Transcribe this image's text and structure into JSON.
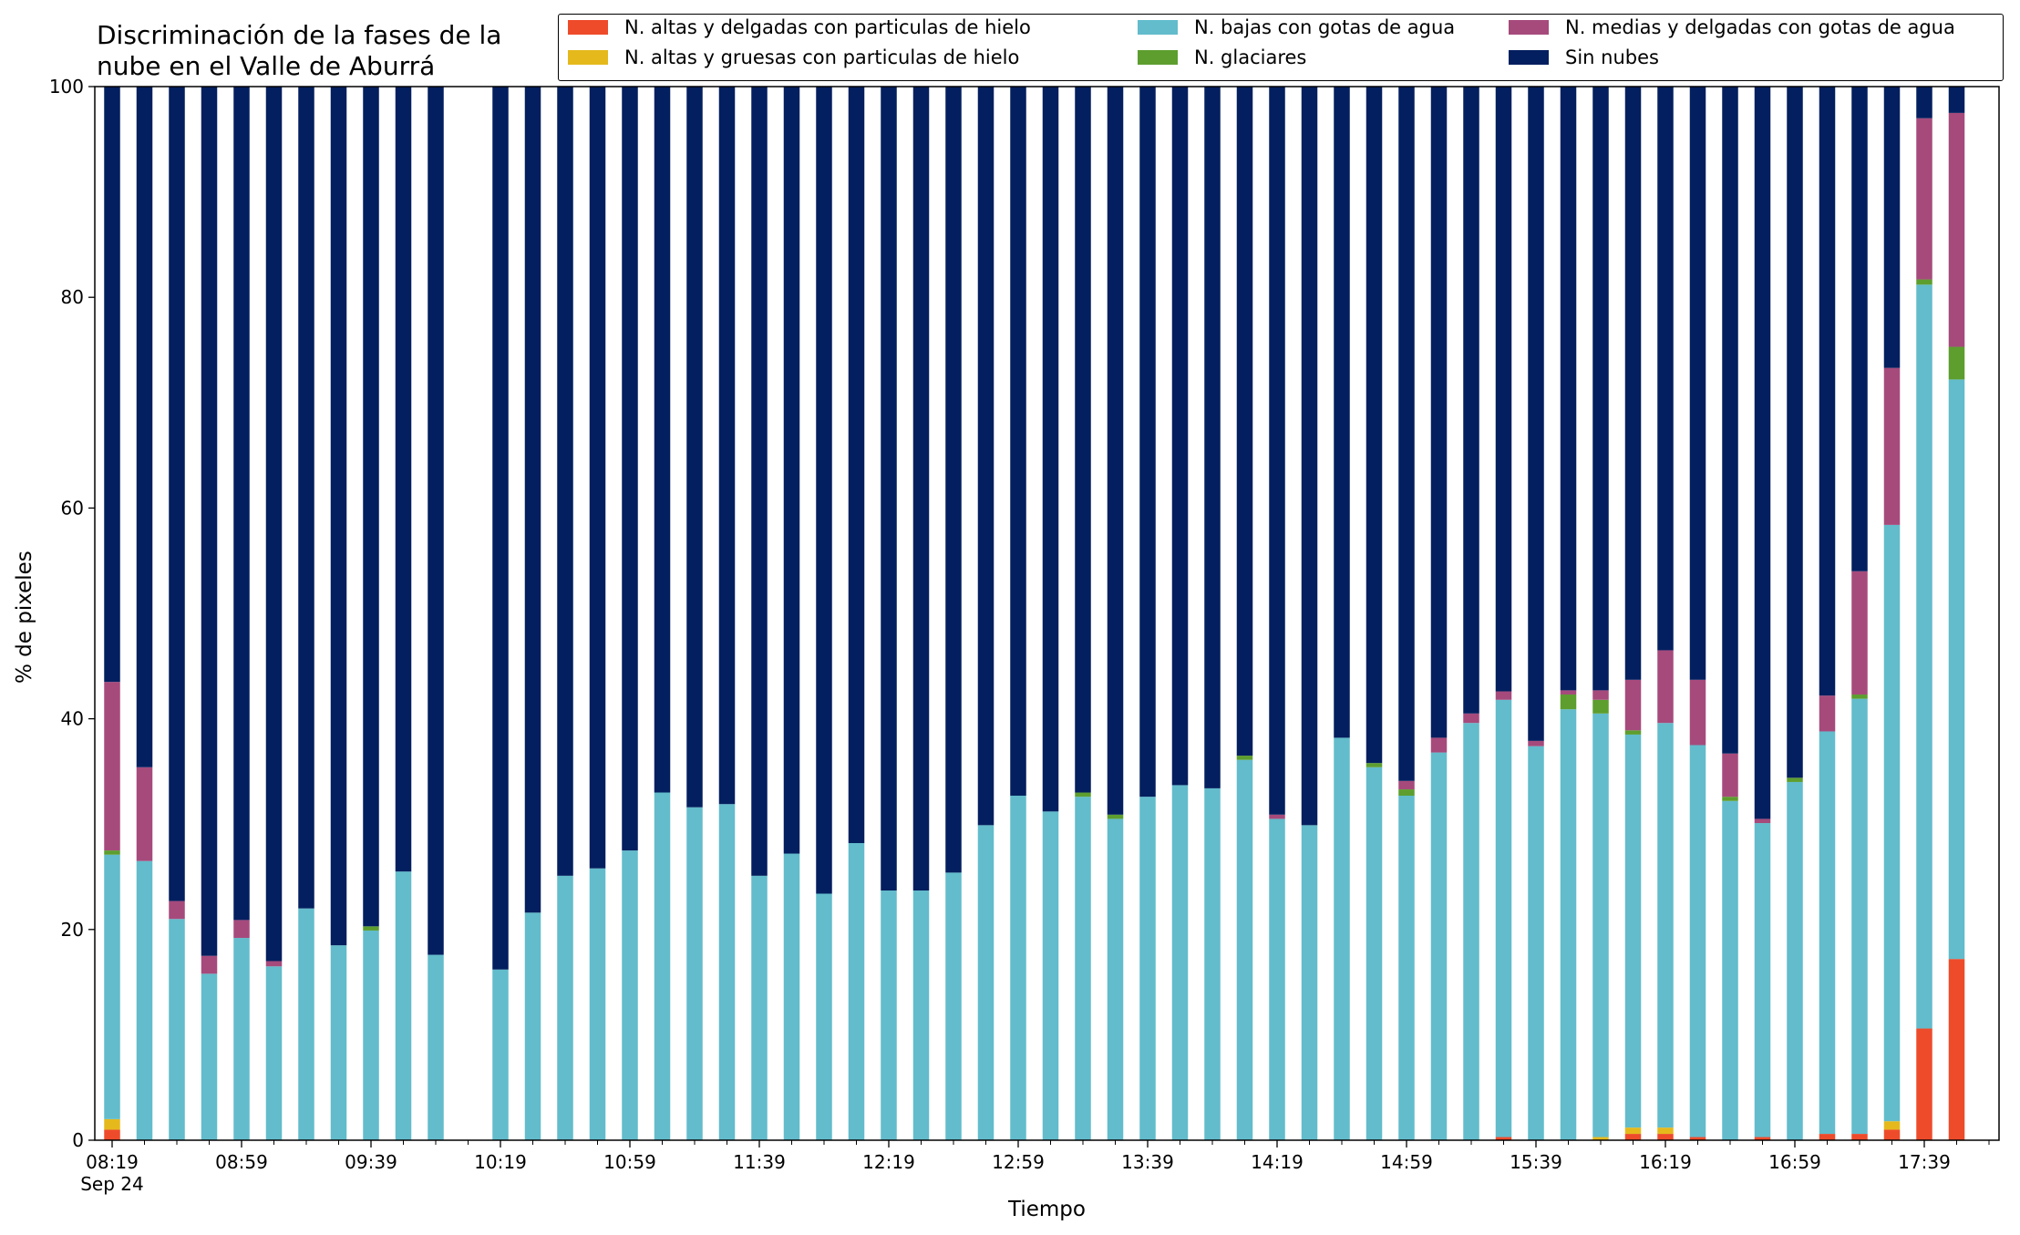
{
  "chart_data": {
    "type": "bar",
    "stacked": true,
    "title": "Discriminación de la fases de la\nnube en el Valle de Aburrá",
    "xlabel": "Tiempo",
    "ylabel": "% de pixeles",
    "ylim": [
      0,
      100
    ],
    "yticks": [
      0,
      20,
      40,
      60,
      80,
      100
    ],
    "xtick_labels": [
      "08:19\nSep 24",
      "08:59",
      "09:39",
      "10:19",
      "10:59",
      "11:39",
      "12:19",
      "12:59",
      "13:39",
      "14:19",
      "14:59",
      "15:39",
      "16:19",
      "16:59",
      "17:39"
    ],
    "legend_placement": "top",
    "legend_columns": 3,
    "series": [
      {
        "name": "N. altas y delgadas con particulas de hielo",
        "color": "#ee4b2b"
      },
      {
        "name": "N. altas y gruesas con particulas de hielo",
        "color": "#e5b91c"
      },
      {
        "name": "N. bajas con gotas de agua",
        "color": "#62bccb"
      },
      {
        "name": "N. glaciares",
        "color": "#5d9e2f"
      },
      {
        "name": "N. medias y delgadas con gotas de agua",
        "color": "#a64a7c"
      },
      {
        "name": "Sin nubes",
        "color": "#031f5f"
      }
    ],
    "bars": [
      [
        1.0,
        1.0,
        25.1,
        0.4,
        16.0,
        56.5
      ],
      [
        0,
        0,
        26.5,
        0,
        8.9,
        64.6
      ],
      [
        0,
        0,
        21.0,
        0,
        1.7,
        77.3
      ],
      [
        0,
        0,
        15.8,
        0,
        1.7,
        82.5
      ],
      [
        0,
        0,
        19.2,
        0,
        1.7,
        79.1
      ],
      [
        0,
        0,
        16.5,
        0,
        0.5,
        83.0
      ],
      [
        0,
        0,
        22.0,
        0,
        0,
        78.0
      ],
      [
        0,
        0,
        18.5,
        0,
        0,
        81.5
      ],
      [
        0,
        0,
        19.9,
        0.4,
        0,
        79.7
      ],
      [
        0,
        0,
        25.5,
        0,
        0,
        74.5
      ],
      [
        0,
        0,
        17.6,
        0,
        0,
        82.4
      ],
      null,
      [
        0,
        0,
        16.2,
        0,
        0,
        83.8
      ],
      [
        0,
        0,
        21.6,
        0,
        0,
        78.4
      ],
      [
        0,
        0,
        25.1,
        0,
        0,
        74.9
      ],
      [
        0,
        0,
        25.8,
        0,
        0,
        74.2
      ],
      [
        0,
        0,
        27.5,
        0,
        0,
        72.5
      ],
      [
        0,
        0,
        33.0,
        0,
        0,
        67.0
      ],
      [
        0,
        0,
        31.6,
        0,
        0,
        68.4
      ],
      [
        0,
        0,
        31.9,
        0,
        0,
        68.1
      ],
      [
        0,
        0,
        25.1,
        0,
        0,
        74.9
      ],
      [
        0,
        0,
        27.2,
        0,
        0,
        72.8
      ],
      [
        0,
        0,
        23.4,
        0,
        0,
        76.6
      ],
      [
        0,
        0,
        28.2,
        0,
        0,
        71.8
      ],
      [
        0,
        0,
        23.7,
        0,
        0,
        76.3
      ],
      [
        0,
        0,
        23.7,
        0,
        0,
        76.3
      ],
      [
        0,
        0,
        25.4,
        0,
        0,
        74.6
      ],
      [
        0,
        0,
        29.9,
        0,
        0,
        70.1
      ],
      [
        0,
        0,
        32.7,
        0,
        0,
        67.3
      ],
      [
        0,
        0,
        31.2,
        0,
        0,
        68.8
      ],
      [
        0,
        0,
        32.6,
        0.4,
        0,
        67.0
      ],
      [
        0,
        0,
        30.5,
        0.4,
        0,
        69.1
      ],
      [
        0,
        0,
        32.6,
        0,
        0,
        67.4
      ],
      [
        0,
        0,
        33.7,
        0,
        0,
        66.3
      ],
      [
        0,
        0,
        33.4,
        0,
        0,
        66.6
      ],
      [
        0,
        0,
        36.1,
        0.4,
        0,
        63.5
      ],
      [
        0,
        0,
        30.5,
        0,
        0.4,
        69.1
      ],
      [
        0,
        0,
        29.9,
        0,
        0,
        70.1
      ],
      [
        0,
        0,
        38.2,
        0,
        0,
        61.8
      ],
      [
        0,
        0,
        35.4,
        0.4,
        0,
        64.2
      ],
      [
        0,
        0,
        32.7,
        0.6,
        0.8,
        65.9
      ],
      [
        0,
        0,
        36.8,
        0,
        1.4,
        61.8
      ],
      [
        0,
        0,
        39.6,
        0,
        0.9,
        59.5
      ],
      [
        0.3,
        0,
        41.5,
        0,
        0.8,
        57.4
      ],
      [
        0,
        0,
        37.4,
        0,
        0.5,
        62.1
      ],
      [
        0,
        0,
        40.9,
        1.4,
        0.4,
        57.3
      ],
      [
        0,
        0.3,
        40.2,
        1.3,
        0.9,
        57.3
      ],
      [
        0.6,
        0.6,
        37.3,
        0.4,
        4.8,
        56.3
      ],
      [
        0.6,
        0.6,
        38.4,
        0,
        6.9,
        53.5
      ],
      [
        0.3,
        0,
        37.2,
        0,
        6.2,
        56.3
      ],
      [
        0,
        0,
        32.2,
        0.4,
        4.1,
        63.3
      ],
      [
        0.3,
        0,
        29.8,
        0,
        0.4,
        69.5
      ],
      [
        0,
        0,
        34.0,
        0.4,
        0,
        65.6
      ],
      [
        0.6,
        0,
        38.2,
        0,
        3.4,
        57.8
      ],
      [
        0.6,
        0,
        41.3,
        0.4,
        11.7,
        46.0
      ],
      [
        1.0,
        0.8,
        56.6,
        0,
        14.9,
        26.7
      ],
      [
        10.6,
        0,
        70.6,
        0.5,
        15.3,
        3.0
      ],
      [
        17.2,
        0,
        55.0,
        3.1,
        22.2,
        2.5
      ]
    ]
  }
}
